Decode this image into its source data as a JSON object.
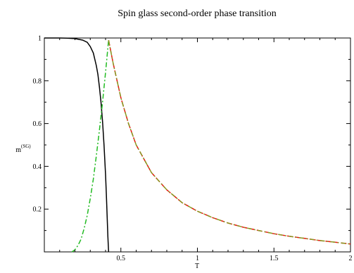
{
  "chart_data": {
    "type": "line",
    "title": "Spin glass second-order phase transition",
    "xlabel": "T",
    "ylabel": "m",
    "ylabel_superscript": "(SG)",
    "xlim": [
      0.0,
      2.0
    ],
    "ylim": [
      0.0,
      1.0
    ],
    "x_ticks": [
      0.5,
      1,
      1.5,
      2
    ],
    "x_tick_labels": [
      "0.5",
      "1",
      "1.5",
      "2"
    ],
    "y_ticks": [
      0.2,
      0.4,
      0.6,
      0.8,
      1
    ],
    "y_tick_labels": [
      "0.2",
      "0.4",
      "0.6",
      "0.8",
      "1"
    ],
    "grid": false,
    "series": [
      {
        "color": "#000000",
        "style": "solid",
        "x": [
          0.0,
          0.1,
          0.15,
          0.2,
          0.25,
          0.28,
          0.3,
          0.32,
          0.34,
          0.35,
          0.36,
          0.37,
          0.38,
          0.39,
          0.4,
          0.405,
          0.41,
          0.415,
          0.42
        ],
        "y": [
          1.0,
          1.0,
          0.999,
          0.997,
          0.99,
          0.98,
          0.96,
          0.93,
          0.87,
          0.83,
          0.77,
          0.7,
          0.61,
          0.5,
          0.36,
          0.27,
          0.17,
          0.07,
          0.0
        ]
      },
      {
        "color": "#22bb22",
        "style": "dash-dot",
        "x": [
          0.18,
          0.2,
          0.22,
          0.24,
          0.26,
          0.28,
          0.3,
          0.32,
          0.34,
          0.36,
          0.38,
          0.4,
          0.42
        ],
        "y": [
          0.0,
          0.01,
          0.03,
          0.06,
          0.11,
          0.17,
          0.25,
          0.34,
          0.45,
          0.57,
          0.7,
          0.84,
          0.99
        ]
      },
      {
        "color": "#ee1111",
        "style": "dashed",
        "x": [
          0.42,
          0.45,
          0.5,
          0.55,
          0.6,
          0.7,
          0.8,
          0.9,
          1.0,
          1.1,
          1.2,
          1.3,
          1.4,
          1.5,
          1.6,
          1.7,
          1.8,
          1.9,
          2.0
        ],
        "y": [
          0.99,
          0.88,
          0.72,
          0.6,
          0.5,
          0.37,
          0.29,
          0.23,
          0.19,
          0.16,
          0.135,
          0.115,
          0.1,
          0.085,
          0.073,
          0.063,
          0.053,
          0.045,
          0.037
        ]
      },
      {
        "color": "#889922",
        "style": "dash-dot",
        "x": [
          0.42,
          0.45,
          0.5,
          0.55,
          0.6,
          0.7,
          0.8,
          0.9,
          1.0,
          1.1,
          1.2,
          1.3,
          1.4,
          1.5,
          1.6,
          1.7,
          1.8,
          1.9,
          2.0
        ],
        "y": [
          0.99,
          0.88,
          0.72,
          0.6,
          0.5,
          0.37,
          0.29,
          0.23,
          0.19,
          0.16,
          0.135,
          0.115,
          0.1,
          0.085,
          0.073,
          0.063,
          0.053,
          0.045,
          0.037
        ]
      }
    ]
  }
}
